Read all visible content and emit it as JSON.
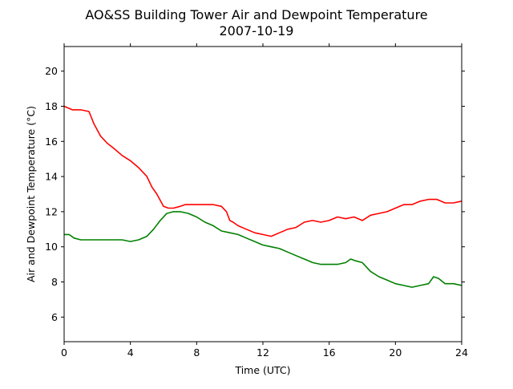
{
  "chart_data": {
    "type": "line",
    "title": "AO&SS Building Tower Air and Dewpoint Temperature",
    "subtitle": "2007-10-19",
    "xlabel": "Time (UTC)",
    "ylabel": "Air and Dewpoint Temperature (°C)",
    "xlim": [
      0,
      24
    ],
    "ylim": [
      4.6,
      21.4
    ],
    "xticks": [
      0,
      4,
      8,
      12,
      16,
      20,
      24
    ],
    "yticks": [
      6,
      8,
      10,
      12,
      14,
      16,
      18,
      20
    ],
    "grid": false,
    "series": [
      {
        "color": "#ff0000",
        "x": [
          0,
          0.5,
          1,
          1.5,
          1.8,
          2.2,
          2.6,
          3,
          3.5,
          4,
          4.5,
          5,
          5.3,
          5.6,
          6,
          6.3,
          6.6,
          7,
          7.3,
          7.6,
          8,
          8.5,
          9,
          9.5,
          9.8,
          10,
          10.2,
          10.5,
          11,
          11.5,
          12,
          12.5,
          13,
          13.5,
          14,
          14.5,
          15,
          15.5,
          16,
          16.5,
          17,
          17.5,
          18,
          18.5,
          19,
          19.5,
          20,
          20.5,
          21,
          21.5,
          22,
          22.5,
          23,
          23.5,
          24
        ],
        "y": [
          18.0,
          17.8,
          17.8,
          17.7,
          17.0,
          16.3,
          15.9,
          15.6,
          15.2,
          14.9,
          14.5,
          14.0,
          13.4,
          13.0,
          12.3,
          12.2,
          12.2,
          12.3,
          12.4,
          12.4,
          12.4,
          12.4,
          12.4,
          12.3,
          12.0,
          11.5,
          11.4,
          11.2,
          11.0,
          10.8,
          10.7,
          10.6,
          10.8,
          11.0,
          11.1,
          11.4,
          11.5,
          11.4,
          11.5,
          11.7,
          11.6,
          11.7,
          11.5,
          11.8,
          11.9,
          12.0,
          12.2,
          12.4,
          12.4,
          12.6,
          12.7,
          12.7,
          12.5,
          12.5,
          12.6
        ]
      },
      {
        "color": "#008000",
        "x": [
          0,
          0.3,
          0.6,
          1,
          1.5,
          2,
          2.5,
          3,
          3.5,
          4,
          4.5,
          5,
          5.4,
          5.8,
          6.2,
          6.6,
          7,
          7.5,
          8,
          8.5,
          9,
          9.5,
          10,
          10.5,
          11,
          11.5,
          12,
          12.5,
          13,
          13.5,
          14,
          14.5,
          15,
          15.5,
          16,
          16.5,
          17,
          17.3,
          17.6,
          18,
          18.5,
          19,
          19.5,
          20,
          20.5,
          21,
          21.5,
          22,
          22.3,
          22.6,
          23,
          23.5,
          24
        ],
        "y": [
          10.7,
          10.7,
          10.5,
          10.4,
          10.4,
          10.4,
          10.4,
          10.4,
          10.4,
          10.3,
          10.4,
          10.6,
          11.0,
          11.5,
          11.9,
          12.0,
          12.0,
          11.9,
          11.7,
          11.4,
          11.2,
          10.9,
          10.8,
          10.7,
          10.5,
          10.3,
          10.1,
          10.0,
          9.9,
          9.7,
          9.5,
          9.3,
          9.1,
          9.0,
          9.0,
          9.0,
          9.1,
          9.3,
          9.2,
          9.1,
          8.6,
          8.3,
          8.1,
          7.9,
          7.8,
          7.7,
          7.8,
          7.9,
          8.3,
          8.2,
          7.9,
          7.9,
          7.8
        ]
      }
    ]
  }
}
